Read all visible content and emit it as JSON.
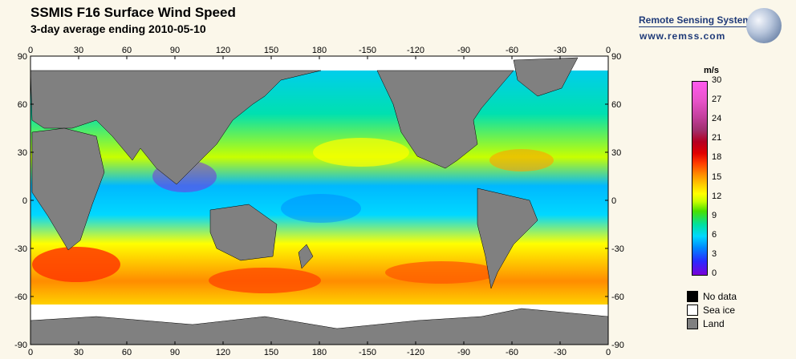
{
  "header": {
    "title": "SSMIS F16 Surface Wind Speed",
    "subtitle": "3-day average ending 2010-05-10"
  },
  "branding": {
    "name": "Remote Sensing Systems",
    "url": "www.remss.com"
  },
  "map": {
    "top_lon_ticks": [
      "0",
      "30",
      "60",
      "90",
      "120",
      "150",
      "180",
      "-150",
      "-120",
      "-90",
      "-60",
      "-30",
      "0"
    ],
    "bottom_lon_ticks": [
      "0",
      "30",
      "60",
      "90",
      "120",
      "150",
      "180",
      "-150",
      "-120",
      "-90",
      "-60",
      "-30",
      "0"
    ],
    "left_lat_ticks": [
      "90",
      "60",
      "30",
      "0",
      "-30",
      "-60",
      "-90"
    ],
    "right_lat_ticks": [
      "90",
      "60",
      "30",
      "0",
      "-30",
      "-60",
      "-90"
    ],
    "land_color": "#808080",
    "ice_color": "#ffffff"
  },
  "colorbar": {
    "unit": "m/s",
    "labels": [
      "30",
      "27",
      "24",
      "21",
      "18",
      "15",
      "12",
      "9",
      "6",
      "3",
      "0"
    ]
  },
  "legend": [
    {
      "label": "No data",
      "color": "#000000"
    },
    {
      "label": "Sea ice",
      "color": "#ffffff"
    },
    {
      "label": "Land",
      "color": "#808080"
    }
  ]
}
